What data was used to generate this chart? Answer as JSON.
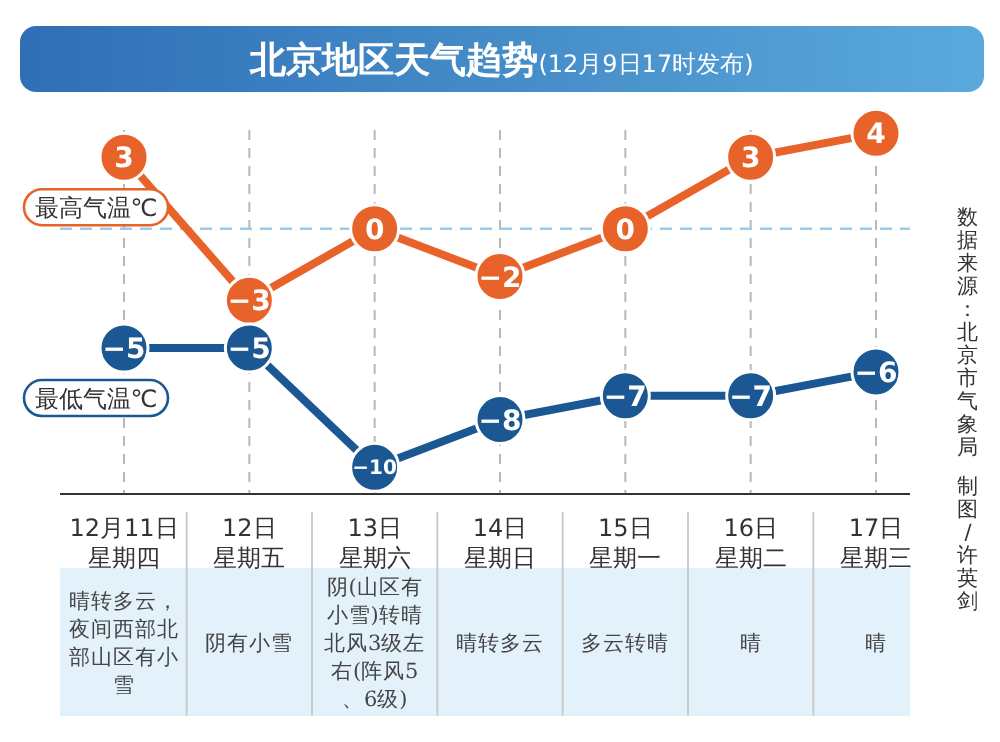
{
  "chart_data": {
    "type": "line",
    "title": "北京地区天气趋势",
    "subtitle": "(12月9日17时发布)",
    "categories": [
      "12月11日星期四",
      "12日星期五",
      "13日星期六",
      "14日星期日",
      "15日星期一",
      "16日星期二",
      "17日星期三"
    ],
    "series": [
      {
        "name": "最高气温℃",
        "color": "#e8632a",
        "values": [
          3,
          -3,
          0,
          -2,
          0,
          3,
          4
        ]
      },
      {
        "name": "最低气温℃",
        "color": "#1b5793",
        "values": [
          -5,
          -5,
          -10,
          -8,
          -7,
          -7,
          -6
        ]
      }
    ],
    "data_labels": true,
    "marker": "circle",
    "grid": "x",
    "legend": false,
    "tick_labels": "x",
    "ref_lines": [
      {
        "axis": "y",
        "value": 0,
        "color": "#9ccbe8",
        "line_style": "dashed"
      }
    ],
    "annotations": [
      "晴转多云，夜间西部北部山区有小雪",
      "阴有小雪",
      "阴(山区有小雪)转晴北风3级左右(阵风5、6级)",
      "晴转多云",
      "多云转晴",
      "晴",
      "晴",
      "数据来源：北京市气象局",
      "制图/许英剑"
    ]
  }
}
